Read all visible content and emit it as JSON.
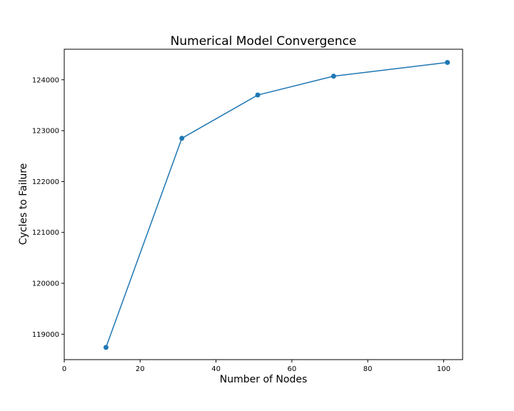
{
  "chart_data": {
    "type": "line",
    "title": "Numerical Model Convergence",
    "xlabel": "Number of Nodes",
    "ylabel": "Cycles to Failure",
    "xlim": [
      0,
      105
    ],
    "ylim": [
      118500,
      124600
    ],
    "xticks": [
      0,
      20,
      40,
      60,
      80,
      100
    ],
    "yticks": [
      119000,
      120000,
      121000,
      122000,
      123000,
      124000
    ],
    "grid": false,
    "series": [
      {
        "x": [
          11,
          31,
          51,
          71,
          101
        ],
        "y": [
          118740,
          122850,
          123700,
          124070,
          124340
        ],
        "color": "#1f77b4",
        "marker": "circle"
      }
    ]
  }
}
